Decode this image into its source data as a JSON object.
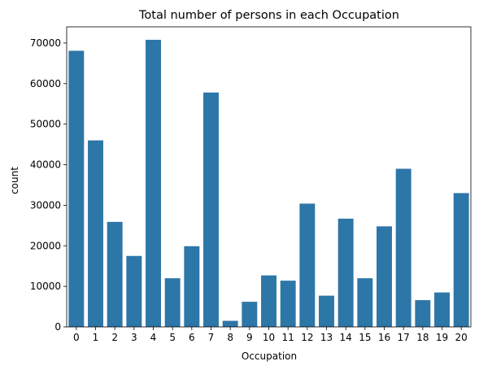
{
  "chart_data": {
    "type": "bar",
    "title": "Total number of persons in each Occupation",
    "xlabel": "Occupation",
    "ylabel": "count",
    "categories": [
      "0",
      "1",
      "2",
      "3",
      "4",
      "5",
      "6",
      "7",
      "8",
      "9",
      "10",
      "11",
      "12",
      "13",
      "14",
      "15",
      "16",
      "17",
      "18",
      "19",
      "20"
    ],
    "values": [
      68100,
      46000,
      25900,
      17500,
      70800,
      12000,
      19900,
      57800,
      1500,
      6200,
      12700,
      11400,
      30400,
      7700,
      26700,
      12000,
      24800,
      39000,
      6600,
      8500,
      33000
    ],
    "ylim": [
      0,
      74000
    ],
    "yticks": [
      0,
      10000,
      20000,
      30000,
      40000,
      50000,
      60000,
      70000
    ],
    "bar_color": "#2d76a8",
    "grid": false,
    "legend": "none"
  }
}
